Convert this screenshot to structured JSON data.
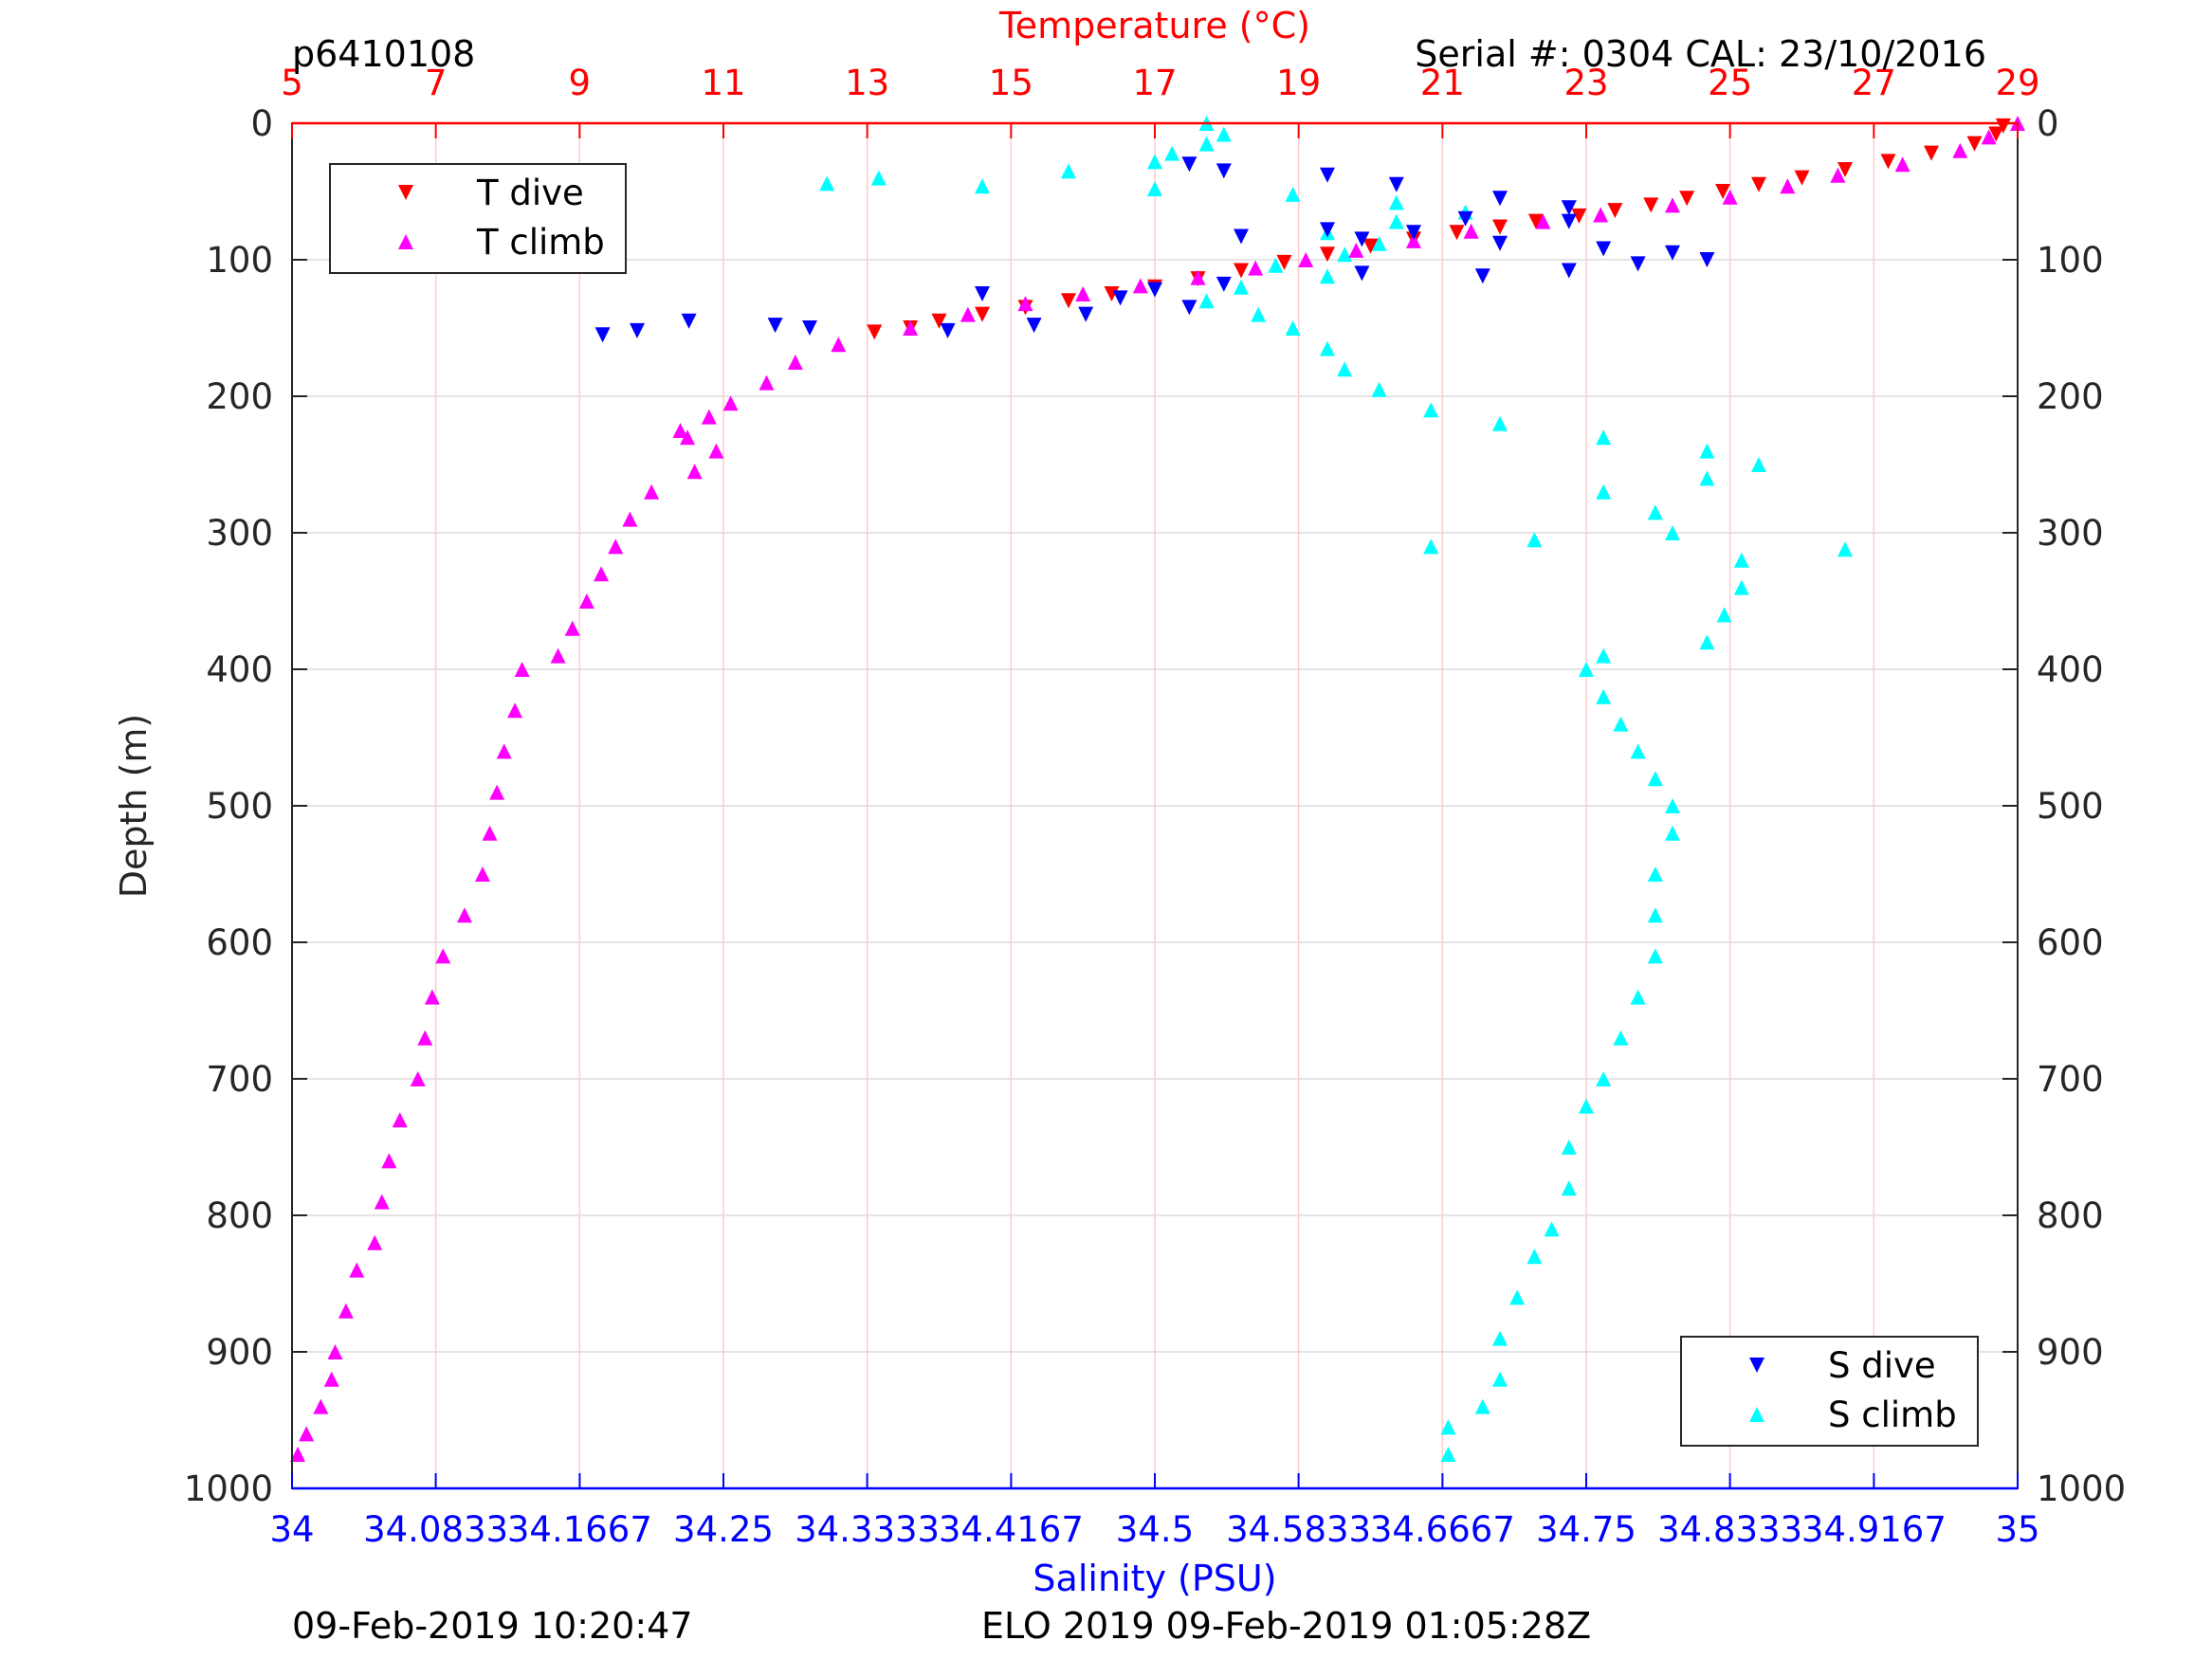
{
  "header": {
    "top_left": "p6410108",
    "top_right": "Serial #: 0304  CAL: 23/10/2016",
    "bottom_left": "09-Feb-2019 10:20:47",
    "bottom_center": "ELO 2019 09-Feb-2019 01:05:28Z"
  },
  "colors": {
    "t_dive": "#ff0000",
    "t_climb": "#ff00ff",
    "s_dive": "#0000ff",
    "s_climb": "#00ffff",
    "temperature_axis": "#ff0000",
    "salinity_axis": "#0000ff",
    "depth_axis": "#262626"
  },
  "chart_data": {
    "type": "scatter",
    "title": "",
    "y_axis": {
      "label": "Depth (m)",
      "range": [
        0,
        1000
      ],
      "reversed": true,
      "ticks": [
        0,
        100,
        200,
        300,
        400,
        500,
        600,
        700,
        800,
        900,
        1000
      ],
      "tick_labels": [
        "0",
        "100",
        "200",
        "300",
        "400",
        "500",
        "600",
        "700",
        "800",
        "900",
        "1000"
      ]
    },
    "x_top_axis": {
      "label": "Temperature (°C)",
      "range": [
        5,
        29
      ],
      "ticks": [
        5,
        7,
        9,
        11,
        13,
        15,
        17,
        19,
        21,
        23,
        25,
        27,
        29
      ],
      "tick_labels": [
        "5",
        "7",
        "9",
        "11",
        "13",
        "15",
        "17",
        "19",
        "21",
        "23",
        "25",
        "27",
        "29"
      ]
    },
    "x_bottom_axis": {
      "label": "Salinity (PSU)",
      "range": [
        34,
        35
      ],
      "ticks": [
        34,
        34.0833,
        34.1667,
        34.25,
        34.3333,
        34.4167,
        34.5,
        34.5833,
        34.6667,
        34.75,
        34.8333,
        34.9167,
        35
      ],
      "tick_labels": [
        "34",
        "34.0833",
        "34.1667",
        "34.25",
        "34.3333",
        "34.4167",
        "34.5",
        "34.5833",
        "34.6667",
        "34.75",
        "34.8333",
        "34.9167",
        "35"
      ]
    },
    "grid": true,
    "legends": [
      {
        "placement": "top-left",
        "entries": [
          "T dive",
          "T climb"
        ]
      },
      {
        "placement": "bottom-right",
        "entries": [
          "S dive",
          "S climb"
        ]
      }
    ],
    "series": [
      {
        "name": "T dive",
        "axis": "temperature",
        "marker": "triangle-down",
        "points": [
          [
            28.8,
            2
          ],
          [
            28.7,
            8
          ],
          [
            28.4,
            15
          ],
          [
            27.8,
            22
          ],
          [
            27.2,
            28
          ],
          [
            26.6,
            34
          ],
          [
            26.0,
            40
          ],
          [
            25.4,
            45
          ],
          [
            24.9,
            50
          ],
          [
            24.4,
            55
          ],
          [
            23.9,
            60
          ],
          [
            23.4,
            64
          ],
          [
            22.9,
            68
          ],
          [
            22.3,
            72
          ],
          [
            21.8,
            76
          ],
          [
            21.2,
            80
          ],
          [
            20.6,
            85
          ],
          [
            20.0,
            90
          ],
          [
            19.4,
            96
          ],
          [
            18.8,
            102
          ],
          [
            18.2,
            108
          ],
          [
            17.6,
            114
          ],
          [
            17.0,
            120
          ],
          [
            16.4,
            125
          ],
          [
            15.8,
            130
          ],
          [
            15.2,
            135
          ],
          [
            14.6,
            140
          ],
          [
            14.0,
            145
          ],
          [
            13.6,
            150
          ],
          [
            13.1,
            153
          ]
        ]
      },
      {
        "name": "T climb",
        "axis": "temperature",
        "marker": "triangle-up",
        "points": [
          [
            29.0,
            0
          ],
          [
            28.6,
            10
          ],
          [
            28.2,
            20
          ],
          [
            27.4,
            30
          ],
          [
            26.5,
            38
          ],
          [
            25.8,
            46
          ],
          [
            25.0,
            54
          ],
          [
            24.2,
            60
          ],
          [
            23.2,
            67
          ],
          [
            22.4,
            72
          ],
          [
            21.4,
            79
          ],
          [
            20.6,
            86
          ],
          [
            19.8,
            93
          ],
          [
            19.1,
            100
          ],
          [
            18.4,
            106
          ],
          [
            17.6,
            113
          ],
          [
            16.8,
            119
          ],
          [
            16.0,
            125
          ],
          [
            15.2,
            132
          ],
          [
            14.4,
            140
          ],
          [
            13.6,
            150
          ],
          [
            12.6,
            162
          ],
          [
            12.0,
            175
          ],
          [
            11.6,
            190
          ],
          [
            11.1,
            205
          ],
          [
            10.8,
            215
          ],
          [
            10.4,
            225
          ],
          [
            10.5,
            230
          ],
          [
            10.9,
            240
          ],
          [
            10.6,
            255
          ],
          [
            10.0,
            270
          ],
          [
            9.7,
            290
          ],
          [
            9.5,
            310
          ],
          [
            9.3,
            330
          ],
          [
            9.1,
            350
          ],
          [
            8.9,
            370
          ],
          [
            8.7,
            390
          ],
          [
            8.2,
            400
          ],
          [
            8.1,
            430
          ],
          [
            7.95,
            460
          ],
          [
            7.85,
            490
          ],
          [
            7.75,
            520
          ],
          [
            7.65,
            550
          ],
          [
            7.4,
            580
          ],
          [
            7.1,
            610
          ],
          [
            6.95,
            640
          ],
          [
            6.85,
            670
          ],
          [
            6.75,
            700
          ],
          [
            6.5,
            730
          ],
          [
            6.35,
            760
          ],
          [
            6.25,
            790
          ],
          [
            6.15,
            820
          ],
          [
            5.9,
            840
          ],
          [
            5.75,
            870
          ],
          [
            5.6,
            900
          ],
          [
            5.55,
            920
          ],
          [
            5.4,
            940
          ],
          [
            5.2,
            960
          ],
          [
            5.08,
            975
          ]
        ]
      },
      {
        "name": "S dive",
        "axis": "salinity",
        "marker": "triangle-down",
        "points": [
          [
            34.52,
            30
          ],
          [
            34.54,
            35
          ],
          [
            34.6,
            38
          ],
          [
            34.64,
            45
          ],
          [
            34.7,
            55
          ],
          [
            34.74,
            62
          ],
          [
            34.68,
            70
          ],
          [
            34.74,
            72
          ],
          [
            34.6,
            78
          ],
          [
            34.65,
            80
          ],
          [
            34.55,
            83
          ],
          [
            34.62,
            85
          ],
          [
            34.7,
            88
          ],
          [
            34.76,
            92
          ],
          [
            34.8,
            95
          ],
          [
            34.82,
            100
          ],
          [
            34.78,
            103
          ],
          [
            34.74,
            108
          ],
          [
            34.69,
            112
          ],
          [
            34.62,
            110
          ],
          [
            34.54,
            118
          ],
          [
            34.5,
            122
          ],
          [
            34.48,
            128
          ],
          [
            34.4,
            125
          ],
          [
            34.46,
            140
          ],
          [
            34.52,
            135
          ],
          [
            34.43,
            148
          ],
          [
            34.38,
            152
          ],
          [
            34.3,
            150
          ],
          [
            34.28,
            148
          ],
          [
            34.23,
            145
          ],
          [
            34.2,
            152
          ],
          [
            34.18,
            155
          ]
        ]
      },
      {
        "name": "S climb",
        "axis": "salinity",
        "marker": "triangle-up",
        "points": [
          [
            34.53,
            0
          ],
          [
            34.54,
            8
          ],
          [
            34.53,
            15
          ],
          [
            34.51,
            22
          ],
          [
            34.5,
            28
          ],
          [
            34.45,
            35
          ],
          [
            34.34,
            40
          ],
          [
            34.31,
            44
          ],
          [
            34.4,
            46
          ],
          [
            34.5,
            48
          ],
          [
            34.58,
            52
          ],
          [
            34.64,
            58
          ],
          [
            34.68,
            65
          ],
          [
            34.64,
            72
          ],
          [
            34.6,
            80
          ],
          [
            34.63,
            88
          ],
          [
            34.61,
            96
          ],
          [
            34.57,
            104
          ],
          [
            34.6,
            112
          ],
          [
            34.55,
            120
          ],
          [
            34.53,
            130
          ],
          [
            34.56,
            140
          ],
          [
            34.58,
            150
          ],
          [
            34.6,
            165
          ],
          [
            34.61,
            180
          ],
          [
            34.63,
            195
          ],
          [
            34.66,
            210
          ],
          [
            34.7,
            220
          ],
          [
            34.76,
            230
          ],
          [
            34.82,
            240
          ],
          [
            34.85,
            250
          ],
          [
            34.82,
            260
          ],
          [
            34.76,
            270
          ],
          [
            34.79,
            285
          ],
          [
            34.8,
            300
          ],
          [
            34.66,
            310
          ],
          [
            34.72,
            305
          ],
          [
            34.9,
            312
          ],
          [
            34.84,
            320
          ],
          [
            34.84,
            340
          ],
          [
            34.83,
            360
          ],
          [
            34.82,
            380
          ],
          [
            34.76,
            390
          ],
          [
            34.75,
            400
          ],
          [
            34.76,
            420
          ],
          [
            34.77,
            440
          ],
          [
            34.78,
            460
          ],
          [
            34.79,
            480
          ],
          [
            34.8,
            500
          ],
          [
            34.8,
            520
          ],
          [
            34.79,
            550
          ],
          [
            34.79,
            580
          ],
          [
            34.79,
            610
          ],
          [
            34.78,
            640
          ],
          [
            34.77,
            670
          ],
          [
            34.76,
            700
          ],
          [
            34.75,
            720
          ],
          [
            34.74,
            750
          ],
          [
            34.74,
            780
          ],
          [
            34.73,
            810
          ],
          [
            34.72,
            830
          ],
          [
            34.71,
            860
          ],
          [
            34.7,
            890
          ],
          [
            34.7,
            920
          ],
          [
            34.69,
            940
          ],
          [
            34.67,
            955
          ],
          [
            34.67,
            975
          ]
        ]
      }
    ]
  }
}
